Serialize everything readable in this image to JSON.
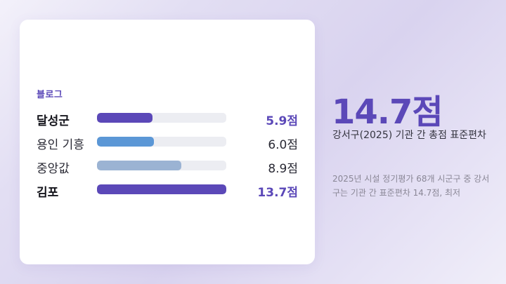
{
  "card": {
    "eyebrow": "블로그"
  },
  "chart_data": {
    "type": "bar",
    "orientation": "horizontal",
    "categories": [
      "달성군",
      "용인 기흥",
      "중앙값",
      "김포"
    ],
    "values": [
      5.9,
      6.0,
      8.9,
      13.7
    ],
    "value_labels": [
      "5.9점",
      "6.0점",
      "8.9점",
      "13.7점"
    ],
    "highlighted": [
      true,
      false,
      false,
      true
    ],
    "xlim": [
      0,
      13.7
    ],
    "colors": [
      "#5b48b8",
      "#5b97d6",
      "#9bb3d3",
      "#5b48b8"
    ],
    "track_color": "#ecedf2"
  },
  "highlight": {
    "value": "14.7점",
    "description": "강서구(2025) 기관 간 총점 표준편차",
    "note": "2025년 시설 정기평가 68개 시군구 중 강서구는 기관 간 표준편차 14.7점, 최저"
  },
  "colors": {
    "accent": "#5b48b8"
  }
}
